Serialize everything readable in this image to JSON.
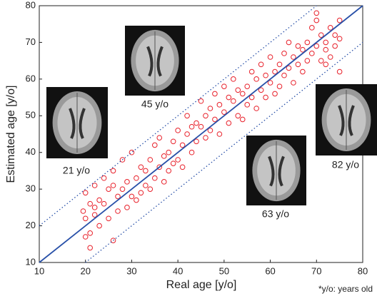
{
  "chart_data": {
    "type": "scatter",
    "xlabel": "Real age [y/o]",
    "ylabel": "Estimated age [y/o]",
    "xlim": [
      10,
      80
    ],
    "ylim": [
      10,
      80
    ],
    "xticks": [
      10,
      20,
      30,
      40,
      50,
      60,
      70,
      80
    ],
    "yticks": [
      10,
      20,
      30,
      40,
      50,
      60,
      70,
      80
    ],
    "color": "#e8202a",
    "line_color": "#2850a8",
    "lines": [
      {
        "style": "solid",
        "x": [
          10,
          80
        ],
        "y": [
          10,
          80
        ]
      },
      {
        "style": "dotted",
        "x": [
          10,
          70
        ],
        "y": [
          20,
          80
        ]
      },
      {
        "style": "dotted",
        "x": [
          20,
          80
        ],
        "y": [
          10,
          70
        ]
      }
    ],
    "x": [
      20,
      20,
      21,
      21,
      22,
      22,
      23,
      23,
      24,
      24,
      25,
      25,
      26,
      26,
      27,
      27,
      28,
      28,
      29,
      29,
      30,
      30,
      31,
      31,
      32,
      32,
      33,
      33,
      34,
      34,
      35,
      35,
      36,
      36,
      37,
      37,
      38,
      38,
      39,
      39,
      40,
      40,
      41,
      41,
      42,
      42,
      43,
      43,
      44,
      44,
      45,
      45,
      46,
      46,
      47,
      47,
      48,
      48,
      49,
      49,
      50,
      50,
      51,
      51,
      52,
      52,
      53,
      53,
      54,
      54,
      55,
      55,
      56,
      56,
      57,
      57,
      58,
      58,
      59,
      59,
      60,
      60,
      61,
      61,
      62,
      62,
      63,
      63,
      64,
      64,
      65,
      65,
      66,
      66,
      67,
      67,
      68,
      68,
      69,
      69,
      70,
      70,
      71,
      71,
      72,
      72,
      73,
      73,
      74,
      74,
      75,
      75,
      20,
      21,
      22,
      19.5,
      26,
      70,
      72,
      75
    ],
    "y": [
      22,
      29,
      18,
      26,
      23,
      31,
      20,
      27,
      26,
      33,
      22,
      30,
      16,
      35,
      24,
      28,
      30,
      38,
      25,
      32,
      28,
      40,
      33,
      27,
      29,
      36,
      35,
      31,
      38,
      30,
      33,
      42,
      36,
      44,
      32,
      39,
      40,
      35,
      43,
      37,
      38,
      46,
      42,
      36,
      45,
      50,
      40,
      47,
      48,
      43,
      47,
      54,
      44,
      50,
      52,
      46,
      49,
      56,
      53,
      45,
      51,
      58,
      48,
      55,
      54,
      60,
      50,
      57,
      56,
      49,
      58,
      53,
      55,
      62,
      60,
      52,
      57,
      64,
      61,
      55,
      59,
      66,
      62,
      56,
      64,
      58,
      61,
      67,
      63,
      70,
      66,
      59,
      64,
      69,
      62,
      68,
      70,
      65,
      67,
      74,
      69,
      76,
      65,
      72,
      70,
      68,
      74,
      66,
      69,
      72,
      71,
      62,
      17,
      14,
      25,
      24,
      31,
      78,
      64,
      76
    ],
    "annotations": [
      {
        "text": "21 y/o"
      },
      {
        "text": "45 y/o"
      },
      {
        "text": "63 y/o"
      },
      {
        "text": "82 y/o"
      }
    ],
    "footnote": "*y/o: years old"
  }
}
